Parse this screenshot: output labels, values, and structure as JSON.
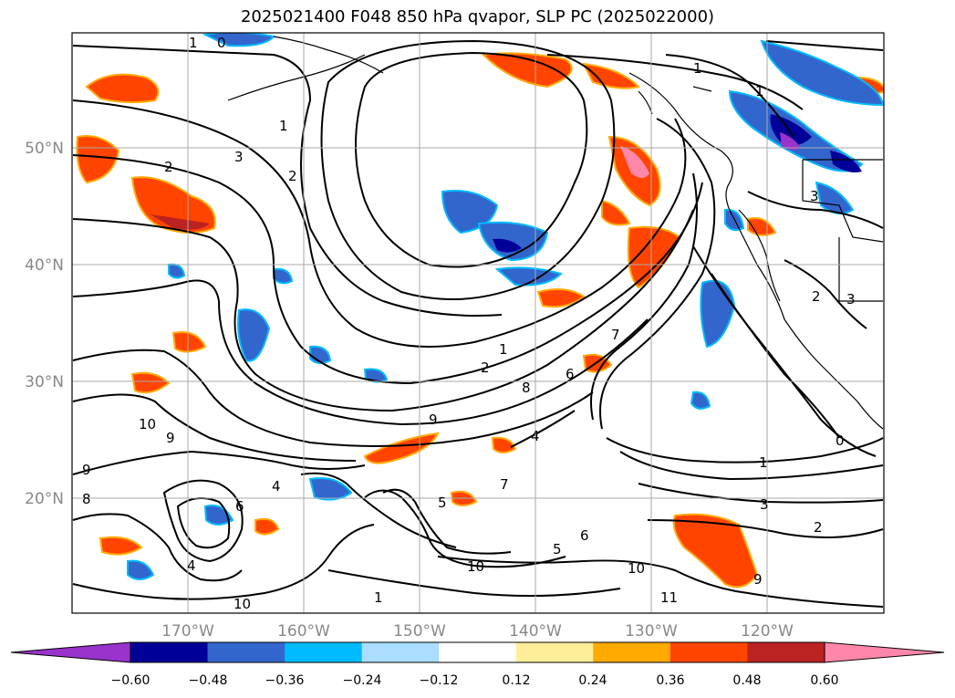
{
  "title": "2025021400 F048 850 hPa qvapor, SLP PC (2025022000)",
  "lat_labels": [
    "50°N",
    "40°N",
    "30°N",
    "20°N"
  ],
  "lon_labels": [
    "170°W",
    "160°W",
    "150°W",
    "140°W",
    "130°W",
    "120°W"
  ],
  "colorbar": {
    "tick_labels": [
      "−0.60",
      "−0.48",
      "−0.36",
      "−0.24",
      "−0.12",
      "0.12",
      "0.24",
      "0.36",
      "0.48",
      "0.60"
    ],
    "under_color": "#9933cc",
    "over_color": "#ff88aa",
    "bin_colors": [
      "#000099",
      "#3366cc",
      "#00bbff",
      "#aaddff",
      "#ffffff",
      "#ffee99",
      "#ffaa00",
      "#ff4400",
      "#bb2222"
    ]
  },
  "contour_labels": [
    "0",
    "1",
    "1",
    "2",
    "2",
    "3",
    "1",
    "1",
    "2",
    "7",
    "8",
    "9",
    "10",
    "9",
    "9",
    "8",
    "6",
    "4",
    "5",
    "7",
    "6",
    "5",
    "10",
    "10",
    "9",
    "1",
    "3",
    "2",
    "0",
    "1",
    "3",
    "2",
    "3",
    "10",
    "11",
    "4",
    "6",
    "4",
    "1"
  ]
}
